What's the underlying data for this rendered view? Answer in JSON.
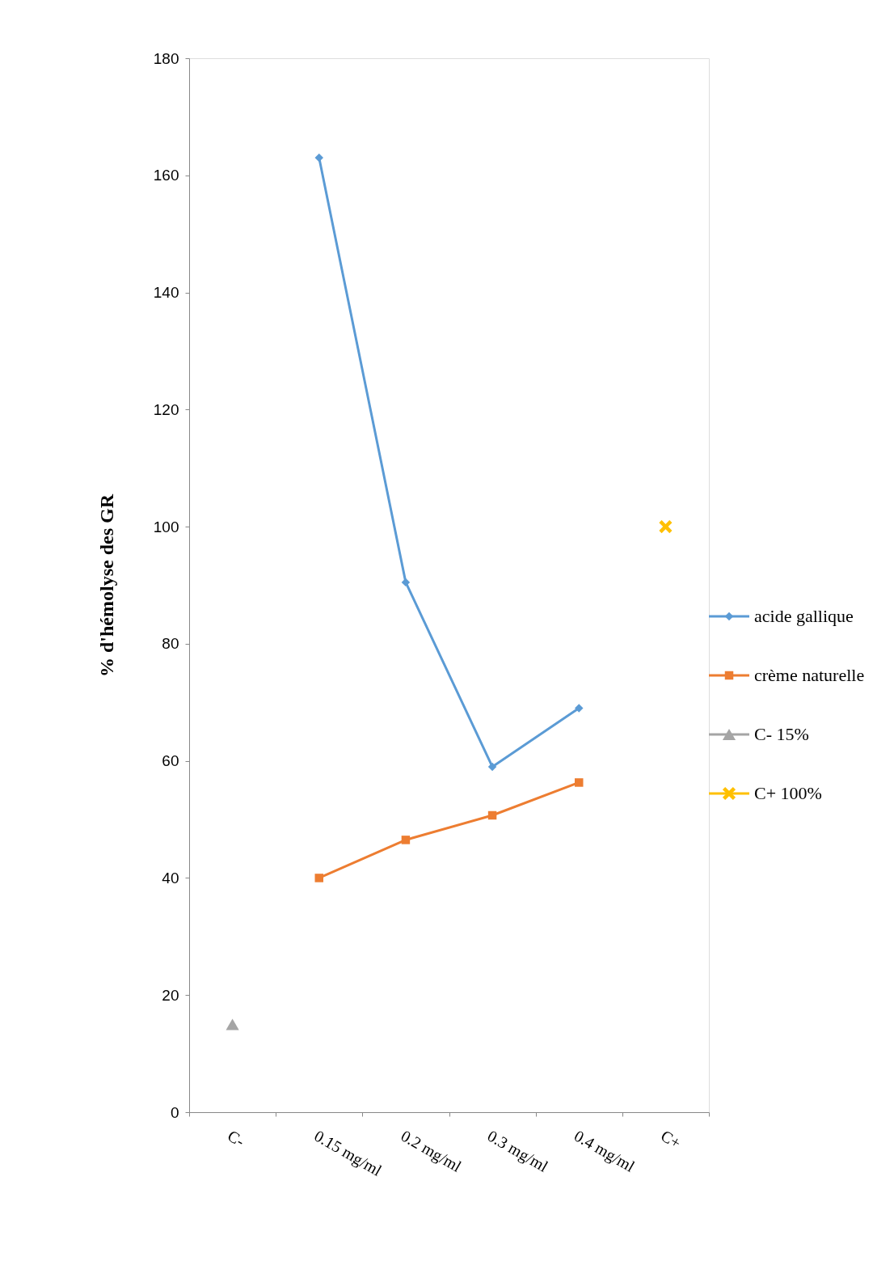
{
  "chart_data": {
    "type": "line",
    "ylabel": "% d'hémolyse des GR",
    "categories": [
      "C-",
      "0.15 mg/ml",
      "0.2 mg/ml",
      "0.3 mg/ml",
      "0.4 mg/ml",
      "C+"
    ],
    "ylim": [
      0,
      180
    ],
    "yticks": [
      0,
      20,
      40,
      60,
      80,
      100,
      120,
      140,
      160,
      180
    ],
    "grid": false,
    "legend": "right",
    "series": [
      {
        "name": "acide gallique",
        "marker": "diamond",
        "color": "#5b9bd5",
        "values": [
          null,
          163,
          90.5,
          59,
          69,
          null
        ]
      },
      {
        "name": "crème naturelle",
        "marker": "square",
        "color": "#ed7d31",
        "values": [
          null,
          40,
          46.5,
          50.7,
          56.3,
          null
        ]
      },
      {
        "name": "C- 15%",
        "type": "scatter",
        "marker": "triangle",
        "color": "#a5a5a5",
        "values": [
          15,
          null,
          null,
          null,
          null,
          null
        ]
      },
      {
        "name": "C+ 100%",
        "type": "scatter",
        "marker": "cross",
        "color": "#ffc000",
        "values": [
          null,
          null,
          null,
          null,
          null,
          100
        ]
      }
    ]
  }
}
